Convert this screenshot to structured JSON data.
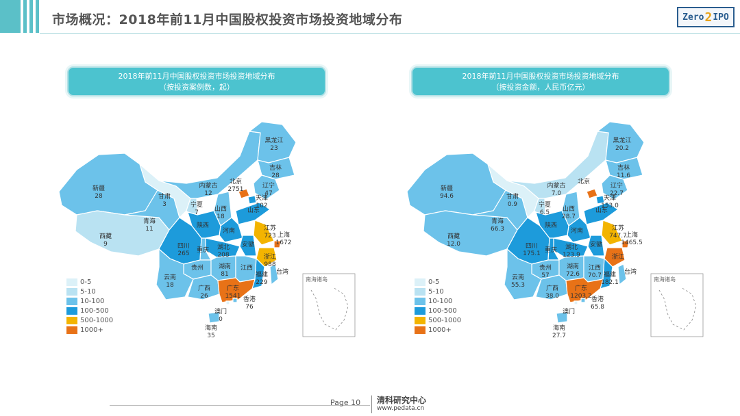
{
  "header": {
    "title": "市场概况：2018年前11月中国股权投资市场投资地域分布",
    "logo_left": "Zero",
    "logo_mid": "2",
    "logo_right": "IPO"
  },
  "colors": {
    "accent": "#4cc3cf",
    "bin_0_5": "#dcf1f8",
    "bin_5_10": "#b9e2f2",
    "bin_10_100": "#6cc2ea",
    "bin_100_500": "#1d9bdb",
    "bin_500_1000": "#f3b400",
    "bin_1000_plus": "#e87217"
  },
  "legend": [
    "0-5",
    "5-10",
    "10-100",
    "100-500",
    "500-1000",
    "1000+"
  ],
  "inset_label": "南海诸岛",
  "panels": [
    {
      "title_line1": "2018年前11月中国股权投资市场投资地域分布",
      "title_line2": "（按投资案例数，起）",
      "regions": [
        {
          "name": "新疆",
          "value": "28",
          "bin": "bin_10_100"
        },
        {
          "name": "西藏",
          "value": "9",
          "bin": "bin_5_10"
        },
        {
          "name": "青海",
          "value": "11",
          "bin": "bin_10_100"
        },
        {
          "name": "甘肃",
          "value": "3",
          "bin": "bin_0_5"
        },
        {
          "name": "内蒙古",
          "value": "12",
          "bin": "bin_10_100"
        },
        {
          "name": "宁夏",
          "value": "7",
          "bin": "bin_5_10"
        },
        {
          "name": "黑龙江",
          "value": "23",
          "bin": "bin_10_100"
        },
        {
          "name": "吉林",
          "value": "28",
          "bin": "bin_10_100"
        },
        {
          "name": "辽宁",
          "value": "47",
          "bin": "bin_10_100"
        },
        {
          "name": "北京",
          "value": "2751",
          "bin": "bin_1000_plus"
        },
        {
          "name": "天津",
          "value": "102",
          "bin": "bin_100_500"
        },
        {
          "name": "山西",
          "value": "18",
          "bin": "bin_10_100"
        },
        {
          "name": "山东",
          "value": "",
          "bin": "bin_100_500"
        },
        {
          "name": "河南",
          "value": "",
          "bin": "bin_100_500"
        },
        {
          "name": "江苏",
          "value": "723",
          "bin": "bin_500_1000"
        },
        {
          "name": "上海",
          "value": "1672",
          "bin": "bin_1000_plus"
        },
        {
          "name": "浙江",
          "value": "988",
          "bin": "bin_500_1000"
        },
        {
          "name": "安徽",
          "value": "",
          "bin": "bin_100_500"
        },
        {
          "name": "湖北",
          "value": "208",
          "bin": "bin_100_500"
        },
        {
          "name": "四川",
          "value": "265",
          "bin": "bin_100_500"
        },
        {
          "name": "重庆",
          "value": "",
          "bin": "bin_10_100"
        },
        {
          "name": "陕西",
          "value": "",
          "bin": "bin_100_500"
        },
        {
          "name": "贵州",
          "value": "",
          "bin": "bin_10_100"
        },
        {
          "name": "湖南",
          "value": "81",
          "bin": "bin_10_100"
        },
        {
          "name": "江西",
          "value": "",
          "bin": "bin_10_100"
        },
        {
          "name": "福建",
          "value": "229",
          "bin": "bin_100_500"
        },
        {
          "name": "云南",
          "value": "18",
          "bin": "bin_10_100"
        },
        {
          "name": "广西",
          "value": "26",
          "bin": "bin_10_100"
        },
        {
          "name": "广东",
          "value": "1541",
          "bin": "bin_1000_plus"
        },
        {
          "name": "香港",
          "value": "76",
          "bin": "bin_10_100"
        },
        {
          "name": "澳门",
          "value": "0",
          "bin": "bin_0_5"
        },
        {
          "name": "海南",
          "value": "35",
          "bin": "bin_10_100"
        },
        {
          "name": "台湾",
          "value": "",
          "bin": "bin_10_100"
        }
      ]
    },
    {
      "title_line1": "2018年前11月中国股权投资市场投资地域分布",
      "title_line2": "（按投资金额，人民币亿元）",
      "regions": [
        {
          "name": "新疆",
          "value": "94.6",
          "bin": "bin_10_100"
        },
        {
          "name": "西藏",
          "value": "12.0",
          "bin": "bin_10_100"
        },
        {
          "name": "青海",
          "value": "66.3",
          "bin": "bin_10_100"
        },
        {
          "name": "甘肃",
          "value": "0.9",
          "bin": "bin_0_5"
        },
        {
          "name": "内蒙古",
          "value": "7.0",
          "bin": "bin_5_10"
        },
        {
          "name": "宁夏",
          "value": "6.5",
          "bin": "bin_5_10"
        },
        {
          "name": "黑龙江",
          "value": "20.2",
          "bin": "bin_10_100"
        },
        {
          "name": "吉林",
          "value": "11.6",
          "bin": "bin_10_100"
        },
        {
          "name": "辽宁",
          "value": "22.7",
          "bin": "bin_10_100"
        },
        {
          "name": "北京",
          "value": "",
          "bin": "bin_1000_plus"
        },
        {
          "name": "天津",
          "value": "153.0",
          "bin": "bin_100_500"
        },
        {
          "name": "山西",
          "value": "28.7",
          "bin": "bin_10_100"
        },
        {
          "name": "山东",
          "value": "",
          "bin": "bin_100_500"
        },
        {
          "name": "河南",
          "value": "",
          "bin": "bin_100_500"
        },
        {
          "name": "江苏",
          "value": "747.7",
          "bin": "bin_500_1000"
        },
        {
          "name": "上海",
          "value": "1465.5",
          "bin": "bin_1000_plus"
        },
        {
          "name": "浙江",
          "value": "",
          "bin": "bin_1000_plus"
        },
        {
          "name": "安徽",
          "value": "",
          "bin": "bin_100_500"
        },
        {
          "name": "湖北",
          "value": "123.9",
          "bin": "bin_100_500"
        },
        {
          "name": "四川",
          "value": "175.1",
          "bin": "bin_100_500"
        },
        {
          "name": "重庆",
          "value": "",
          "bin": "bin_100_500"
        },
        {
          "name": "陕西",
          "value": "",
          "bin": "bin_100_500"
        },
        {
          "name": "贵州",
          "value": "57",
          "bin": "bin_10_100"
        },
        {
          "name": "湖南",
          "value": "72.6",
          "bin": "bin_10_100"
        },
        {
          "name": "江西",
          "value": "70.7",
          "bin": "bin_10_100"
        },
        {
          "name": "福建",
          "value": "182.1",
          "bin": "bin_100_500"
        },
        {
          "name": "云南",
          "value": "55.3",
          "bin": "bin_10_100"
        },
        {
          "name": "广西",
          "value": "38.0",
          "bin": "bin_10_100"
        },
        {
          "name": "广东",
          "value": "1203.2",
          "bin": "bin_1000_plus"
        },
        {
          "name": "香港",
          "value": "65.8",
          "bin": "bin_10_100"
        },
        {
          "name": "澳门",
          "value": "",
          "bin": "bin_0_5"
        },
        {
          "name": "海南",
          "value": "27.7",
          "bin": "bin_10_100"
        },
        {
          "name": "台湾",
          "value": "",
          "bin": "bin_10_100"
        }
      ]
    }
  ],
  "footer": {
    "page_label": "Page 10",
    "org": "清科研究中心",
    "url": "www.pedata.cn"
  }
}
